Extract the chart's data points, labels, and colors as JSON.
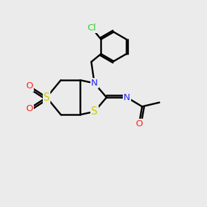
{
  "background_color": "#ebebeb",
  "atom_colors": {
    "C": "#000000",
    "N": "#2222ff",
    "S": "#cccc00",
    "O": "#ff2222",
    "Cl": "#33cc33"
  },
  "bond_color": "#000000",
  "bond_width": 1.8,
  "figsize": [
    3.0,
    3.0
  ],
  "dpi": 100,
  "xlim": [
    0,
    10
  ],
  "ylim": [
    0,
    10
  ],
  "font_size": 9.5
}
